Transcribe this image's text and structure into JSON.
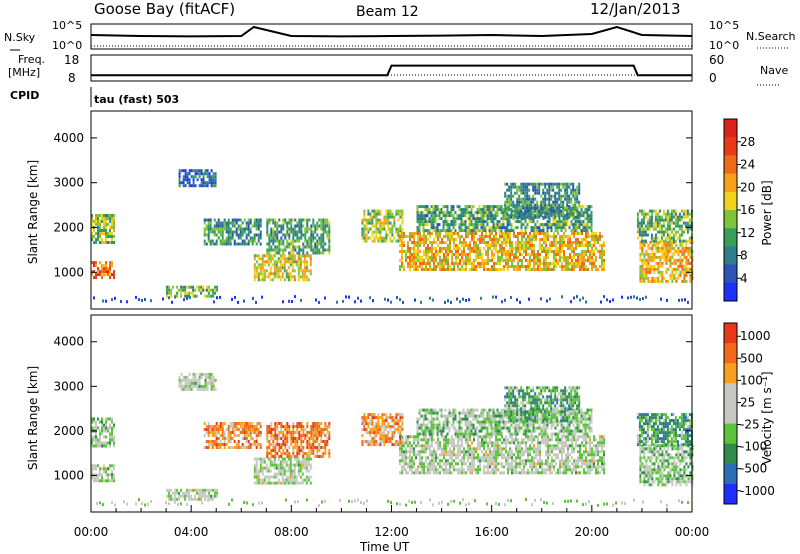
{
  "header": {
    "station": "Goose Bay (fitACF)",
    "beam": "Beam 12",
    "date": "12/Jan/2013"
  },
  "nsky_panel": {
    "left_label": "N.Sky",
    "left_ticks": [
      "10^5",
      "10^0"
    ],
    "right_label": "N.Search",
    "right_ticks": [
      "10^5",
      "10^0"
    ]
  },
  "freq_panel": {
    "left_label_line1": "Freq.",
    "left_label_line2": "[MHz]",
    "left_ticks": [
      "18",
      "8"
    ],
    "right_label": "Nave",
    "right_ticks": [
      "60",
      "0"
    ],
    "cpid_label": "CPID",
    "cpid_text": "tau (fast) 503"
  },
  "chart_data": [
    {
      "type": "line",
      "title": "N.Sky / N.Search",
      "x": [
        "00:00",
        "02:00",
        "04:00",
        "06:00",
        "06:30",
        "08:00",
        "10:00",
        "12:00",
        "14:00",
        "16:00",
        "18:00",
        "20:00",
        "21:00",
        "22:00",
        "24:00"
      ],
      "series": [
        {
          "name": "N.Sky",
          "values": [
            0.55,
            0.5,
            0.48,
            0.5,
            0.95,
            0.5,
            0.48,
            0.5,
            0.52,
            0.55,
            0.5,
            0.6,
            0.95,
            0.55,
            0.5
          ]
        },
        {
          "name": "N.Search",
          "values": [
            0.1,
            0.1,
            0.1,
            0.1,
            0.1,
            0.1,
            0.1,
            0.1,
            0.1,
            0.1,
            0.1,
            0.1,
            0.1,
            0.1,
            0.1
          ]
        }
      ],
      "scale": "log"
    },
    {
      "type": "line",
      "title": "Freq. / Nave",
      "x": [
        "00:00",
        "11:50",
        "12:00",
        "21:40",
        "21:50",
        "24:00"
      ],
      "series": [
        {
          "name": "Freq. [MHz]",
          "values": [
            10,
            10,
            14,
            14,
            10,
            10
          ]
        },
        {
          "name": "Nave",
          "values": [
            15,
            15,
            15,
            15,
            15,
            15
          ]
        }
      ],
      "ylim": [
        8,
        18
      ]
    },
    {
      "type": "heatmap",
      "panel": "power",
      "xlabel": "",
      "ylabel": "Slant Range [km]",
      "yticks": [
        "1000",
        "2000",
        "3000",
        "4000"
      ],
      "ylim": [
        180,
        4600
      ],
      "colorbar_label": "Power [dB]",
      "colorbar_ticks": [
        "4",
        "8",
        "12",
        "16",
        "20",
        "24",
        "28"
      ],
      "colors": [
        "#1f2fff",
        "#2a54b5",
        "#2e7d8a",
        "#3a9e5a",
        "#7dc43a",
        "#f2d21a",
        "#f7a01b",
        "#f06a17",
        "#e83a14",
        "#d8241a"
      ],
      "regions": [
        {
          "t0": 0.0,
          "t1": 0.9,
          "r0": 1650,
          "r1": 2300,
          "level": 0.45
        },
        {
          "t0": 0.0,
          "t1": 0.9,
          "r0": 850,
          "r1": 1250,
          "level": 0.75
        },
        {
          "t0": 3.5,
          "t1": 5.0,
          "r0": 2900,
          "r1": 3300,
          "level": 0.2
        },
        {
          "t0": 4.5,
          "t1": 6.8,
          "r0": 1600,
          "r1": 2200,
          "level": 0.3
        },
        {
          "t0": 6.5,
          "t1": 8.8,
          "r0": 850,
          "r1": 1400,
          "level": 0.55
        },
        {
          "t0": 7.0,
          "t1": 9.5,
          "r0": 1400,
          "r1": 2200,
          "level": 0.35
        },
        {
          "t0": 3.0,
          "t1": 5.0,
          "r0": 450,
          "r1": 700,
          "level": 0.4
        },
        {
          "t0": 10.8,
          "t1": 12.4,
          "r0": 1700,
          "r1": 2400,
          "level": 0.45
        },
        {
          "t0": 12.3,
          "t1": 20.5,
          "r0": 1050,
          "r1": 1900,
          "level": 0.6
        },
        {
          "t0": 13.0,
          "t1": 20.0,
          "r0": 1900,
          "r1": 2500,
          "level": 0.35
        },
        {
          "t0": 16.5,
          "t1": 19.5,
          "r0": 2200,
          "r1": 3000,
          "level": 0.3
        },
        {
          "t0": 21.9,
          "t1": 24.0,
          "r0": 800,
          "r1": 1700,
          "level": 0.6
        },
        {
          "t0": 21.8,
          "t1": 24.0,
          "r0": 1700,
          "r1": 2400,
          "level": 0.4
        }
      ]
    },
    {
      "type": "heatmap",
      "panel": "velocity",
      "xlabel": "Time UT",
      "ylabel": "Slant Range [km]",
      "yticks": [
        "1000",
        "2000",
        "3000",
        "4000"
      ],
      "ylim": [
        180,
        4600
      ],
      "xticks": [
        "00:00",
        "04:00",
        "08:00",
        "12:00",
        "16:00",
        "20:00",
        "00:00"
      ],
      "colorbar_label": "Velocity [m s⁻¹]",
      "colorbar_ticks": [
        "1000",
        "500",
        "100",
        "25",
        "-25",
        "-100",
        "-500",
        "-1000"
      ],
      "colors": [
        "#1f2fff",
        "#2a6fb5",
        "#2f8c4a",
        "#5bc43a",
        "#c7c7c4",
        "#c7c7c4",
        "#f7a01b",
        "#f06a17",
        "#e8371a"
      ],
      "regions": [
        {
          "t0": 0.0,
          "t1": 0.9,
          "r0": 1650,
          "r1": 2300,
          "level": 0.45
        },
        {
          "t0": 0.0,
          "t1": 0.9,
          "r0": 850,
          "r1": 1250,
          "level": 0.5
        },
        {
          "t0": 3.5,
          "t1": 5.0,
          "r0": 2900,
          "r1": 3300,
          "level": 0.5
        },
        {
          "t0": 4.5,
          "t1": 6.8,
          "r0": 1600,
          "r1": 2200,
          "level": 0.75
        },
        {
          "t0": 6.5,
          "t1": 8.8,
          "r0": 850,
          "r1": 1400,
          "level": 0.5
        },
        {
          "t0": 7.0,
          "t1": 9.5,
          "r0": 1400,
          "r1": 2200,
          "level": 0.8
        },
        {
          "t0": 3.0,
          "t1": 5.0,
          "r0": 450,
          "r1": 700,
          "level": 0.5
        },
        {
          "t0": 10.8,
          "t1": 12.4,
          "r0": 1700,
          "r1": 2400,
          "level": 0.75
        },
        {
          "t0": 12.3,
          "t1": 20.5,
          "r0": 1050,
          "r1": 1900,
          "level": 0.5
        },
        {
          "t0": 13.0,
          "t1": 20.0,
          "r0": 1900,
          "r1": 2500,
          "level": 0.45
        },
        {
          "t0": 16.5,
          "t1": 19.5,
          "r0": 2200,
          "r1": 3000,
          "level": 0.35
        },
        {
          "t0": 21.9,
          "t1": 24.0,
          "r0": 800,
          "r1": 1700,
          "level": 0.45
        },
        {
          "t0": 21.8,
          "t1": 24.0,
          "r0": 1700,
          "r1": 2400,
          "level": 0.3
        }
      ]
    }
  ]
}
